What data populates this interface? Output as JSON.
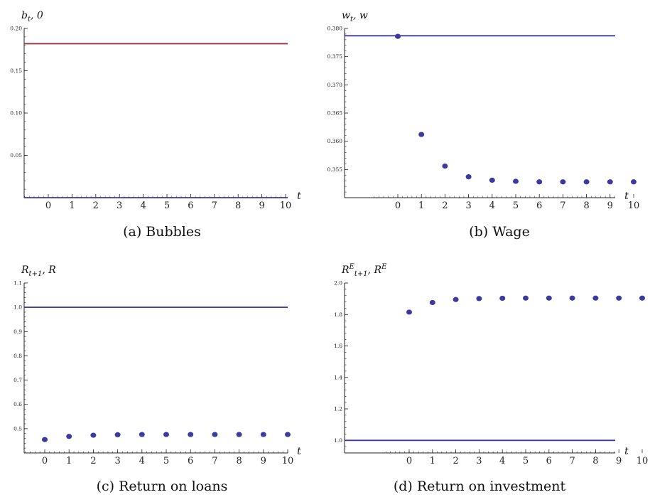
{
  "colors": {
    "primary": "#3a3aa0",
    "secondary": "#a03040",
    "axis": "#222222"
  },
  "chart_data": [
    {
      "type": "scatter",
      "panel": "a",
      "caption": "(a)  Bubbles",
      "ylabel": "b_t, 0",
      "xlabel": "t",
      "ylim": [
        0,
        0.2
      ],
      "yticks": [
        "0.05",
        "0.10",
        "0.15",
        "0.20"
      ],
      "x_ticks": [
        "0",
        "1",
        "2",
        "3",
        "4",
        "5",
        "6",
        "7",
        "8",
        "9",
        "10"
      ],
      "series": [
        {
          "values_x": [
            0,
            1,
            2,
            3,
            4,
            5,
            6,
            7,
            8,
            9,
            10
          ],
          "values_y": [
            0,
            0,
            0,
            0,
            0,
            0,
            0,
            0,
            0,
            0,
            0
          ]
        }
      ],
      "hlines": [
        {
          "y": 0.182,
          "color": "secondary"
        },
        {
          "y": 0.0,
          "color": "primary"
        }
      ]
    },
    {
      "type": "scatter",
      "panel": "b",
      "caption": "(b)  Wage",
      "ylabel": "w_t, w",
      "xlabel": "t",
      "ylim": [
        0.35,
        0.38
      ],
      "yticks": [
        "0.355",
        "0.360",
        "0.365",
        "0.370",
        "0.375",
        "0.380"
      ],
      "x_ticks": [
        "0",
        "1",
        "2",
        "3",
        "4",
        "5",
        "6",
        "7",
        "8",
        "9",
        "10"
      ],
      "series": [
        {
          "values_x": [
            0,
            1,
            2,
            3,
            4,
            5,
            6,
            7,
            8,
            9,
            10
          ],
          "values_y": [
            0.3786,
            0.3612,
            0.3556,
            0.3537,
            0.3531,
            0.3529,
            0.3528,
            0.3528,
            0.3528,
            0.3528,
            0.3528
          ]
        }
      ],
      "hlines": [
        {
          "y": 0.3787,
          "color": "primary"
        }
      ]
    },
    {
      "type": "scatter",
      "panel": "c",
      "caption": "(c)  Return on loans",
      "ylabel": "R_{t+1}, R",
      "xlabel": "t",
      "ylim": [
        0.4,
        1.1
      ],
      "yticks": [
        "0.5",
        "0.6",
        "0.7",
        "0.8",
        "0.9",
        "1.0",
        "1.1"
      ],
      "x_ticks": [
        "0",
        "1",
        "2",
        "3",
        "4",
        "5",
        "6",
        "7",
        "8",
        "9",
        "10"
      ],
      "series": [
        {
          "values_x": [
            0,
            1,
            2,
            3,
            4,
            5,
            6,
            7,
            8,
            9,
            10
          ],
          "values_y": [
            0.455,
            0.468,
            0.473,
            0.475,
            0.476,
            0.476,
            0.476,
            0.476,
            0.476,
            0.476,
            0.476
          ]
        }
      ],
      "hlines": [
        {
          "y": 1.0,
          "color": "primary"
        }
      ]
    },
    {
      "type": "scatter",
      "panel": "d",
      "caption": "(d)  Return on investment",
      "ylabel": "R^E_{t+1}, R^E",
      "xlabel": "t",
      "ylim": [
        0.92,
        2.0
      ],
      "yticks": [
        "1.0",
        "1.2",
        "1.4",
        "1.6",
        "1.8",
        "2.0"
      ],
      "x_ticks": [
        "0",
        "1",
        "2",
        "3",
        "4",
        "5",
        "6",
        "7",
        "8",
        "9",
        "10"
      ],
      "series": [
        {
          "values_x": [
            0,
            1,
            2,
            3,
            4,
            5,
            6,
            7,
            8,
            9,
            10
          ],
          "values_y": [
            1.815,
            1.876,
            1.895,
            1.901,
            1.903,
            1.904,
            1.904,
            1.904,
            1.904,
            1.904,
            1.904
          ]
        }
      ],
      "hlines": [
        {
          "y": 1.0,
          "color": "primary"
        }
      ]
    }
  ]
}
